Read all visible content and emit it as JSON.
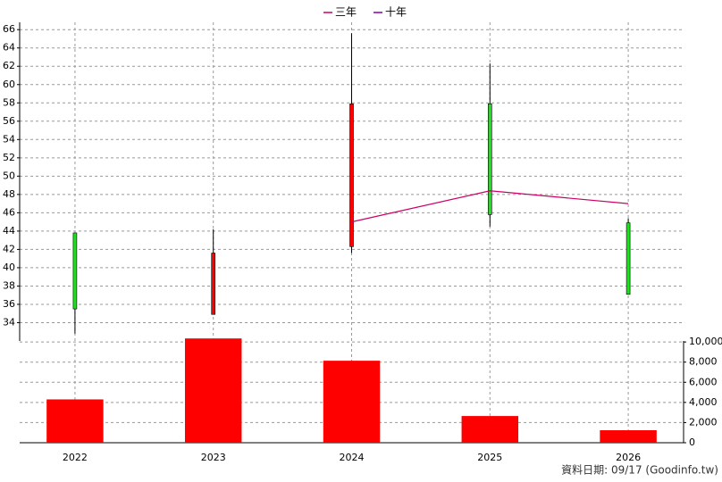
{
  "chart_data": {
    "type": "candlestick",
    "categories": [
      "2022",
      "2023",
      "2024",
      "2025",
      "2026"
    ],
    "open": [
      43.8,
      34.9,
      42.3,
      57.9,
      44.9
    ],
    "high": [
      43.8,
      44.2,
      65.6,
      62.3,
      45.4
    ],
    "low": [
      32.8,
      34.9,
      41.6,
      44.5,
      37.1
    ],
    "close": [
      35.5,
      41.6,
      57.9,
      45.8,
      37.1
    ],
    "up_color": "#ff0000",
    "down_color": "#22dd22",
    "ylim": [
      32,
      66.8
    ],
    "yticks": [
      34,
      36,
      38,
      40,
      42,
      44,
      46,
      48,
      50,
      52,
      54,
      56,
      58,
      60,
      62,
      64,
      66
    ],
    "series": [
      {
        "name": "三年",
        "color": "#cc0066",
        "values": [
          null,
          null,
          45.0,
          48.4,
          47.0
        ]
      },
      {
        "name": "十年",
        "color": "#8800aa",
        "values": [
          null,
          null,
          null,
          null,
          null
        ]
      }
    ],
    "volume": {
      "type": "bar",
      "color": "#ff0000",
      "values": [
        4300,
        10350,
        8140,
        2650,
        1240
      ],
      "y2lim": [
        0,
        10100
      ],
      "y2ticks": [
        0,
        {
          "value": 2000,
          "label": "2,000"
        },
        {
          "value": 4000,
          "label": "4,000"
        },
        {
          "value": 6000,
          "label": "6,000"
        },
        {
          "value": 8000,
          "label": "8,000"
        },
        {
          "value": 10000,
          "label": "10,000"
        }
      ]
    },
    "grid": true
  },
  "footer": "資料日期: 09/17 (Goodinfo.tw)"
}
